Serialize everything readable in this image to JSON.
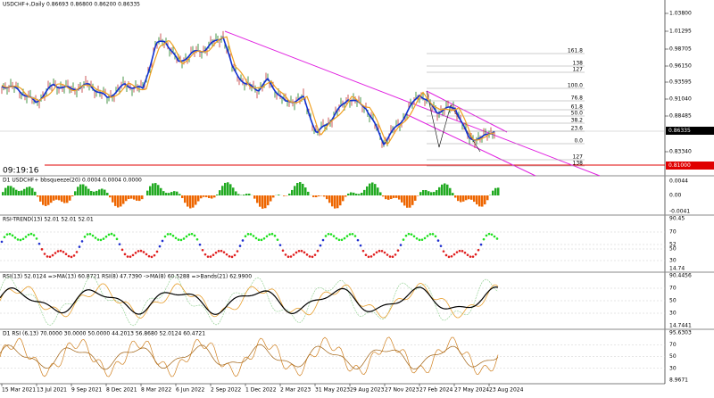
{
  "main": {
    "header": "USDCHF+,Daily  0.86693 0.86800 0.86200 0.86335",
    "price_axis": [
      "1.03800",
      "1.01295",
      "0.98705",
      "0.96150",
      "0.93595",
      "0.91040",
      "0.88485",
      "0.83340"
    ],
    "current_price": "0.86335",
    "alert_price": "0.81000",
    "clock": "09:19:16",
    "fib_labels": [
      "161.8",
      "138",
      "127",
      "100.0",
      "76.8",
      "61.8",
      "50.0",
      "38.2",
      "23.6",
      "0.0",
      "127",
      "138"
    ]
  },
  "panels": [
    {
      "header": "D1 USDCHF+ bbsqueeze(20) 0.0004 0.0004 0.0000",
      "axis": [
        "0.0044",
        "0.00",
        "-0.0041"
      ]
    },
    {
      "header": "RSI-TREND(13) 52.01 52.01 52.01",
      "axis": [
        "90.45",
        "70",
        "52",
        "50",
        "30",
        "14.74"
      ]
    },
    {
      "header": "RSI(13) 52.0124 =>MA(13) 60.8721 RSI(8) 47.7390 ->MA(8) 60.5288 =>Bands(21) 62.9900",
      "axis": [
        "90.4456",
        "70",
        "50",
        "30",
        "14.7441"
      ]
    },
    {
      "header": "D1 RSI (6,13) 70.0000 30.0000 50.0000 44.2013 56.8680 52.0124 60.4721",
      "axis": [
        "95.6303",
        "70",
        "50",
        "30",
        "8.9671"
      ]
    }
  ],
  "date_axis": [
    "15 Mar 2021",
    "13 Jul 2021",
    "9 Sep 2021",
    "8 Dec 2021",
    "8 Mar 2022",
    "6 Jun 2022",
    "2 Sep 2022",
    "1 Dec 2022",
    "2 Mar 2023",
    "31 May 2023",
    "29 Aug 2023",
    "27 Nov 2023",
    "27 Feb 2024",
    "27 May 2024",
    "23 Aug 2024"
  ]
}
